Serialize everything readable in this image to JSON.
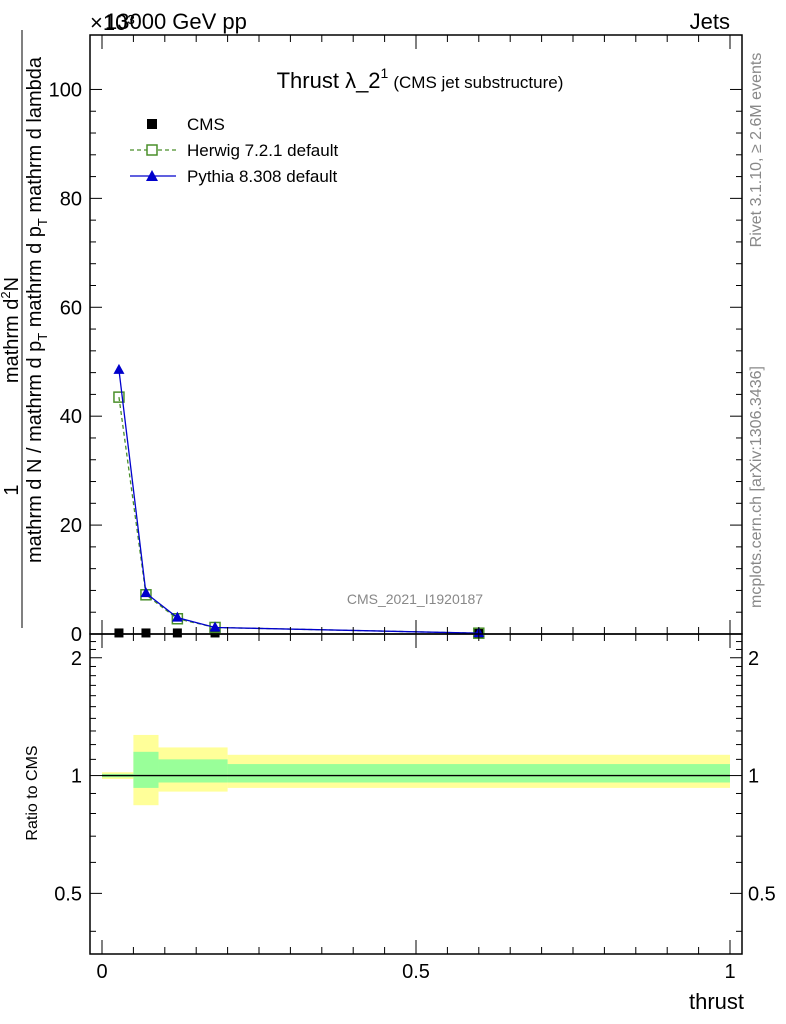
{
  "header": {
    "energy_label": "13000 GeV pp",
    "category_label": "Jets",
    "exponent_label": "×10³"
  },
  "side_labels": {
    "rivet": "Rivet 3.1.10, ≥ 2.6M events",
    "mcplots": "mcplots.cern.ch [arXiv:1306.3436]"
  },
  "chart_data": [
    {
      "type": "line",
      "title_main": "Thrust λ_2",
      "title_sup": "1",
      "title_sub": "(CMS jet substructure)",
      "watermark": "CMS_2021_I1920187",
      "ylabel_num_top": "mathrm d",
      "ylabel_num_sup": "2",
      "ylabel_num_end": "N",
      "ylabel_den": "mathrm d p",
      "ylabel_den_sub": "T",
      "ylabel_den_end": " mathrm d lambda",
      "ylabel_one": "1",
      "ylabel_inner_a": "mathrm d N / mathrm d p",
      "ylabel_inner_sub": "T",
      "ylabel_inner_b": " mathrm d p",
      "ylabel_inner_sub2": "T",
      "xlim": [
        0,
        1
      ],
      "ylim": [
        0,
        110
      ],
      "y_ticks": [
        0,
        20,
        40,
        60,
        80,
        100
      ],
      "y_tick_labels": [
        "0",
        "20",
        "40",
        "60",
        "80",
        "100"
      ],
      "legend_position": "top-left",
      "series": [
        {
          "name": "CMS",
          "color": "#000000",
          "marker": "square-filled",
          "x": [
            0.027,
            0.07,
            0.12,
            0.18,
            0.6
          ],
          "y": [
            0.1,
            0.1,
            0.1,
            0.1,
            0.05
          ]
        },
        {
          "name": "Herwig 7.2.1 default",
          "color": "#4a8f2a",
          "marker": "square-open",
          "dash": true,
          "x": [
            0.027,
            0.07,
            0.12,
            0.18,
            0.6
          ],
          "y": [
            43.5,
            7.2,
            2.8,
            1.2,
            0.15
          ]
        },
        {
          "name": "Pythia 8.308 default",
          "color": "#0000cc",
          "marker": "triangle-filled",
          "x": [
            0.027,
            0.07,
            0.12,
            0.18,
            0.6
          ],
          "y": [
            48.5,
            7.5,
            3.0,
            1.2,
            0.15
          ]
        }
      ]
    },
    {
      "type": "area",
      "ylabel": "Ratio to CMS",
      "xlabel": "thrust",
      "xlim": [
        0,
        1
      ],
      "ylim": [
        0.35,
        2.3
      ],
      "x_ticks": [
        0,
        0.5,
        1
      ],
      "x_tick_labels": [
        "0",
        "0.5",
        "1"
      ],
      "y_ticks": [
        0.5,
        1,
        2
      ],
      "y_tick_labels": [
        "0.5",
        "1",
        "2"
      ],
      "bins": [
        {
          "x0": 0.0,
          "x1": 0.05,
          "yellow": [
            0.98,
            1.02
          ],
          "green": [
            0.99,
            1.01
          ]
        },
        {
          "x0": 0.05,
          "x1": 0.09,
          "yellow": [
            0.84,
            1.27
          ],
          "green": [
            0.93,
            1.15
          ]
        },
        {
          "x0": 0.09,
          "x1": 0.2,
          "yellow": [
            0.91,
            1.18
          ],
          "green": [
            0.96,
            1.1
          ]
        },
        {
          "x0": 0.2,
          "x1": 1.0,
          "yellow": [
            0.93,
            1.13
          ],
          "green": [
            0.96,
            1.07
          ]
        }
      ],
      "band_colors": {
        "yellow": "#ffff99",
        "green": "#99ff99"
      },
      "reference_line": 1
    }
  ]
}
